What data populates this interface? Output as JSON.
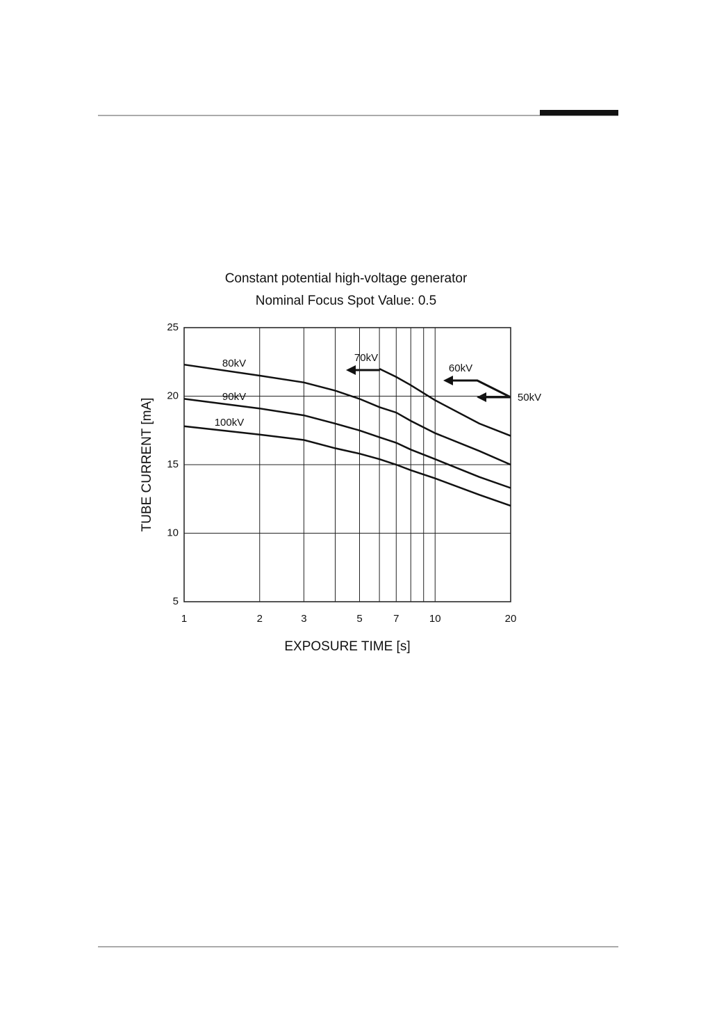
{
  "chart_data": {
    "type": "line",
    "title": "Constant potential high-voltage generator",
    "subtitle": "Nominal Focus Spot Value: 0.5",
    "x_label": "EXPOSURE TIME  [s]",
    "y_label": "TUBE CURRENT  [mA]",
    "xscale": "log",
    "xlim": [
      1,
      20
    ],
    "xticks": [
      1,
      2,
      3,
      5,
      7,
      10,
      20
    ],
    "xminor": [
      4,
      6,
      8,
      9
    ],
    "ylim": [
      5,
      25
    ],
    "yticks": [
      5,
      10,
      15,
      20,
      25
    ],
    "grid": true,
    "x": [
      1,
      2,
      3,
      4,
      5,
      6,
      7,
      8,
      10,
      15,
      20
    ],
    "series": [
      {
        "name": "70kV",
        "color": "#111",
        "values": [
          null,
          null,
          null,
          null,
          null,
          22.0,
          21.4,
          20.8,
          19.7,
          18.0,
          17.1
        ]
      },
      {
        "name": "80kV",
        "color": "#111",
        "values": [
          22.3,
          21.5,
          21.0,
          20.4,
          19.8,
          19.2,
          18.8,
          18.2,
          17.3,
          16.0,
          15.0
        ]
      },
      {
        "name": "90kV",
        "color": "#111",
        "values": [
          19.8,
          19.1,
          18.6,
          18.0,
          17.5,
          17.0,
          16.6,
          16.1,
          15.4,
          14.1,
          13.3
        ]
      },
      {
        "name": "100kV",
        "color": "#111",
        "values": [
          17.8,
          17.2,
          16.8,
          16.2,
          15.8,
          15.4,
          15.0,
          14.6,
          14.0,
          12.8,
          12.0
        ]
      }
    ],
    "annotations": [
      "60kV",
      "50kV"
    ]
  }
}
